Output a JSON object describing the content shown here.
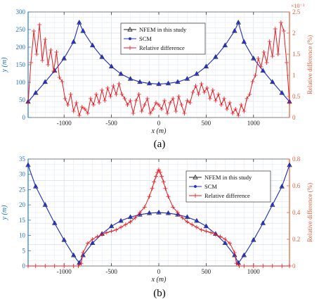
{
  "captions": [
    "(a)",
    "(b)"
  ],
  "chart_data": [
    {
      "panel": "a",
      "type": "line",
      "xlabel": "x (m)",
      "ylabel_left": "y (m)",
      "ylabel_right": "Relative difference (%)",
      "right_multiplier": "×10⁻³",
      "xlim": [
        -1380,
        1380
      ],
      "ylim_left": [
        0,
        300
      ],
      "ylim_right": [
        0,
        2.5
      ],
      "x_ticks": [
        -1000,
        -500,
        0,
        500,
        1000
      ],
      "x_tick_labels": [
        "-1000",
        "-500",
        "0",
        "500",
        "1000"
      ],
      "y_ticks_left": [
        0,
        50,
        100,
        150,
        200,
        250,
        300
      ],
      "y_tick_labels_left": [
        "0",
        "50",
        "100",
        "150",
        "200",
        "250",
        "300"
      ],
      "y_ticks_right": [
        0,
        0.5,
        1,
        1.5,
        2,
        2.5
      ],
      "y_tick_labels_right": [
        "0",
        "0.5",
        "1",
        "1.5",
        "2",
        "2.5"
      ],
      "grid": true,
      "legend_position": "top-center",
      "series": [
        {
          "name": "NFEM in this study",
          "axis": "left",
          "color": "#222222",
          "marker": "triangle",
          "x": [
            -1380,
            -1300,
            -1200,
            -1100,
            -1000,
            -900,
            -840,
            -800,
            -700,
            -600,
            -500,
            -400,
            -300,
            -200,
            -100,
            0,
            100,
            200,
            300,
            400,
            500,
            600,
            700,
            800,
            840,
            900,
            1000,
            1100,
            1200,
            1300,
            1380
          ],
          "y": [
            45,
            70,
            101,
            133,
            168,
            215,
            270,
            246,
            205,
            172,
            145,
            124,
            110,
            101,
            97,
            95,
            97,
            101,
            110,
            124,
            145,
            172,
            205,
            246,
            270,
            215,
            168,
            133,
            101,
            70,
            45
          ]
        },
        {
          "name": "SCM",
          "axis": "left",
          "color": "#1f2fd6",
          "marker": "circle",
          "x": [
            -1380,
            -1300,
            -1200,
            -1100,
            -1000,
            -900,
            -840,
            -800,
            -700,
            -600,
            -500,
            -400,
            -300,
            -200,
            -100,
            0,
            100,
            200,
            300,
            400,
            500,
            600,
            700,
            800,
            840,
            900,
            1000,
            1100,
            1200,
            1300,
            1380
          ],
          "y": [
            45,
            70,
            101,
            133,
            168,
            215,
            270,
            246,
            205,
            172,
            145,
            124,
            110,
            101,
            97,
            95,
            97,
            101,
            110,
            124,
            145,
            172,
            205,
            246,
            270,
            215,
            168,
            133,
            101,
            70,
            45
          ]
        },
        {
          "name": "Relative difference",
          "axis": "right",
          "color": "#e8191f",
          "marker": "plus",
          "x": [
            -1380,
            -1350,
            -1320,
            -1290,
            -1260,
            -1230,
            -1200,
            -1170,
            -1140,
            -1110,
            -1080,
            -1050,
            -1020,
            -990,
            -960,
            -930,
            -900,
            -870,
            -840,
            -810,
            -780,
            -750,
            -720,
            -690,
            -660,
            -630,
            -600,
            -570,
            -540,
            -510,
            -480,
            -450,
            -420,
            -390,
            -360,
            -330,
            -300,
            -270,
            -240,
            -210,
            -180,
            -150,
            -120,
            -90,
            -60,
            -30,
            0,
            30,
            60,
            90,
            120,
            150,
            180,
            210,
            240,
            270,
            300,
            330,
            360,
            390,
            420,
            450,
            480,
            510,
            540,
            570,
            600,
            630,
            660,
            690,
            720,
            750,
            780,
            810,
            840,
            870,
            900,
            930,
            960,
            990,
            1020,
            1050,
            1080,
            1110,
            1140,
            1170,
            1200,
            1230,
            1260,
            1290,
            1320,
            1350,
            1380
          ],
          "y": [
            0.35,
            1.3,
            2.05,
            1.5,
            2.2,
            1.35,
            1.85,
            1.25,
            1.6,
            1.1,
            1.55,
            0.95,
            0.85,
            0.45,
            0.3,
            0.55,
            0.15,
            0.35,
            0.05,
            0.25,
            0.2,
            0.1,
            0.45,
            0.3,
            0.55,
            0.35,
            0.65,
            0.4,
            0.7,
            0.5,
            0.75,
            0.55,
            0.8,
            0.55,
            0.45,
            0.3,
            0.4,
            0.1,
            0.4,
            0.55,
            0.15,
            0.3,
            0.45,
            0.1,
            0.2,
            0.35,
            0.3,
            0.2,
            0.4,
            0.1,
            0.35,
            0.45,
            0.15,
            0.5,
            0.3,
            0.1,
            0.4,
            0.35,
            0.6,
            0.75,
            0.55,
            0.8,
            0.6,
            0.7,
            0.45,
            0.65,
            0.4,
            0.55,
            0.3,
            0.45,
            0.2,
            0.35,
            0.1,
            0.2,
            0.05,
            0.3,
            0.15,
            0.45,
            0.55,
            0.85,
            1.0,
            1.4,
            1.2,
            1.55,
            1.3,
            1.8,
            1.45,
            2.1,
            1.5,
            2.25,
            2.05,
            1.3,
            0.35
          ]
        }
      ]
    },
    {
      "panel": "b",
      "type": "line",
      "xlabel": "x (m)",
      "ylabel_left": "y (m)",
      "ylabel_right": "Relative difference (%)",
      "xlim": [
        -1380,
        1380
      ],
      "ylim_left": [
        0,
        35
      ],
      "ylim_right": [
        0,
        0.8
      ],
      "x_ticks": [
        -1000,
        -500,
        0,
        500,
        1000
      ],
      "x_tick_labels": [
        "-1000",
        "-500",
        "0",
        "500",
        "1000"
      ],
      "y_ticks_left": [
        0,
        5,
        10,
        15,
        20,
        25,
        30,
        35
      ],
      "y_tick_labels_left": [
        "0",
        "5",
        "10",
        "15",
        "20",
        "25",
        "30",
        "35"
      ],
      "y_ticks_right": [
        0,
        0.2,
        0.4,
        0.6,
        0.8
      ],
      "y_tick_labels_right": [
        "0",
        "0.2",
        "0.4",
        "0.6",
        "0.8"
      ],
      "grid": true,
      "legend_position": "top-right",
      "series": [
        {
          "name": "NFEM in this study",
          "axis": "left",
          "color": "#222222",
          "marker": "triangle",
          "x": [
            -1380,
            -1300,
            -1200,
            -1100,
            -1000,
            -900,
            -840,
            -800,
            -700,
            -600,
            -500,
            -400,
            -300,
            -200,
            -100,
            0,
            100,
            200,
            300,
            400,
            500,
            600,
            700,
            800,
            840,
            900,
            1000,
            1100,
            1200,
            1300,
            1380
          ],
          "y": [
            33,
            26,
            20,
            14,
            8.5,
            3.5,
            1,
            3.5,
            7.5,
            10.5,
            13,
            14.8,
            16,
            16.8,
            17.3,
            17.5,
            17.3,
            16.8,
            16,
            14.8,
            13,
            10.5,
            7.5,
            3.5,
            1,
            3.5,
            8.5,
            14,
            20,
            26,
            33
          ]
        },
        {
          "name": "SCM",
          "axis": "left",
          "color": "#1f2fd6",
          "marker": "circle",
          "x": [
            -1380,
            -1300,
            -1200,
            -1100,
            -1000,
            -900,
            -840,
            -800,
            -700,
            -600,
            -500,
            -400,
            -300,
            -200,
            -100,
            0,
            100,
            200,
            300,
            400,
            500,
            600,
            700,
            800,
            840,
            900,
            1000,
            1100,
            1200,
            1300,
            1380
          ],
          "y": [
            33,
            26,
            20,
            14,
            8.5,
            3.5,
            1,
            3.5,
            7.5,
            10.5,
            13,
            14.8,
            16,
            16.8,
            17.3,
            17.5,
            17.3,
            16.8,
            16,
            14.8,
            13,
            10.5,
            7.5,
            3.5,
            1,
            3.5,
            8.5,
            14,
            20,
            26,
            33
          ]
        },
        {
          "name": "Relative difference",
          "axis": "right",
          "color": "#e8191f",
          "marker": "plus",
          "x": [
            -1380,
            -1300,
            -1200,
            -1100,
            -1000,
            -900,
            -850,
            -820,
            -800,
            -750,
            -700,
            -650,
            -600,
            -550,
            -500,
            -450,
            -400,
            -350,
            -300,
            -250,
            -200,
            -150,
            -100,
            -70,
            -50,
            -30,
            -15,
            0,
            15,
            30,
            50,
            70,
            100,
            150,
            200,
            250,
            300,
            350,
            400,
            450,
            500,
            550,
            600,
            650,
            700,
            750,
            800,
            820,
            850,
            900,
            1000,
            1100,
            1200,
            1300,
            1380
          ],
          "y": [
            0,
            0,
            0,
            0,
            0,
            0,
            0,
            0.02,
            0.1,
            0.17,
            0.2,
            0.22,
            0.235,
            0.25,
            0.26,
            0.27,
            0.29,
            0.31,
            0.33,
            0.36,
            0.4,
            0.44,
            0.52,
            0.58,
            0.63,
            0.67,
            0.7,
            0.72,
            0.7,
            0.67,
            0.63,
            0.58,
            0.52,
            0.44,
            0.4,
            0.36,
            0.33,
            0.31,
            0.29,
            0.27,
            0.26,
            0.25,
            0.235,
            0.22,
            0.2,
            0.17,
            0.1,
            0.02,
            0,
            0,
            0,
            0,
            0,
            0,
            0
          ]
        }
      ]
    }
  ]
}
